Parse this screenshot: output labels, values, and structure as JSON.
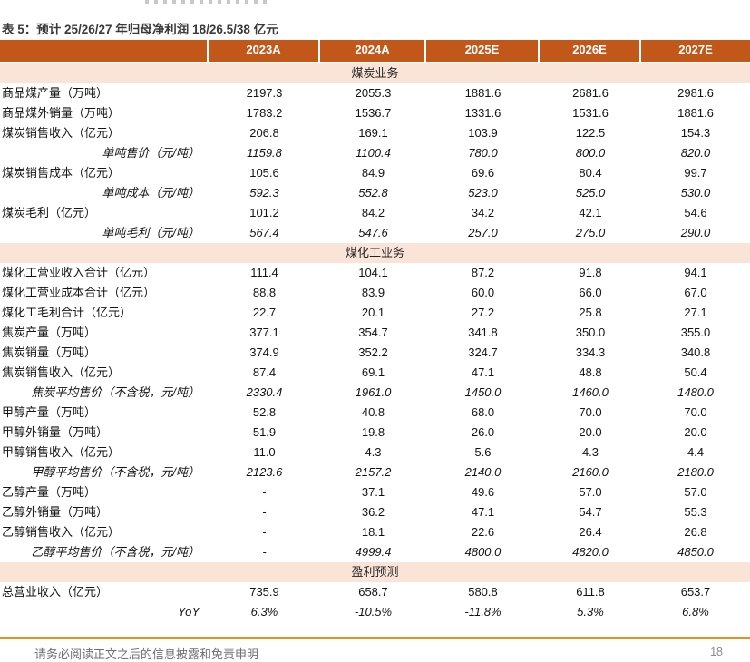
{
  "title": "表 5：预计 25/26/27 年归母净利润 18/26.5/38 亿元",
  "colors": {
    "header_bg": "#c2571a",
    "section_bg": "#fae3d7",
    "footer_rule": "#e89020"
  },
  "chart_data": {
    "type": "table",
    "title": "表 5：预计 25/26/27 年归母净利润 18/26.5/38 亿元",
    "columns": [
      "2023A",
      "2024A",
      "2025E",
      "2026E",
      "2027E"
    ],
    "rows": [
      {
        "type": "section",
        "label": "煤炭业务"
      },
      {
        "type": "data",
        "label": "商品煤产量（万吨）",
        "values": [
          "2197.3",
          "2055.3",
          "1881.6",
          "2681.6",
          "2981.6"
        ]
      },
      {
        "type": "data",
        "label": "商品煤外销量（万吨）",
        "values": [
          "1783.2",
          "1536.7",
          "1331.6",
          "1531.6",
          "1881.6"
        ]
      },
      {
        "type": "data",
        "label": "煤炭销售收入（亿元）",
        "values": [
          "206.8",
          "169.1",
          "103.9",
          "122.5",
          "154.3"
        ]
      },
      {
        "type": "sub",
        "label": "单吨售价（元/吨）",
        "values": [
          "1159.8",
          "1100.4",
          "780.0",
          "800.0",
          "820.0"
        ]
      },
      {
        "type": "data",
        "label": "煤炭销售成本（亿元）",
        "values": [
          "105.6",
          "84.9",
          "69.6",
          "80.4",
          "99.7"
        ]
      },
      {
        "type": "sub",
        "label": "单吨成本（元/吨）",
        "values": [
          "592.3",
          "552.8",
          "523.0",
          "525.0",
          "530.0"
        ]
      },
      {
        "type": "data",
        "label": "煤炭毛利（亿元）",
        "values": [
          "101.2",
          "84.2",
          "34.2",
          "42.1",
          "54.6"
        ]
      },
      {
        "type": "sub",
        "label": "单吨毛利（元/吨）",
        "values": [
          "567.4",
          "547.6",
          "257.0",
          "275.0",
          "290.0"
        ]
      },
      {
        "type": "section",
        "label": "煤化工业务"
      },
      {
        "type": "data",
        "label": "煤化工营业收入合计（亿元）",
        "values": [
          "111.4",
          "104.1",
          "87.2",
          "91.8",
          "94.1"
        ]
      },
      {
        "type": "data",
        "label": "煤化工营业成本合计（亿元）",
        "values": [
          "88.8",
          "83.9",
          "60.0",
          "66.0",
          "67.0"
        ]
      },
      {
        "type": "data",
        "label": "煤化工毛利合计（亿元）",
        "values": [
          "22.7",
          "20.1",
          "27.2",
          "25.8",
          "27.1"
        ]
      },
      {
        "type": "data",
        "label": "焦炭产量（万吨）",
        "values": [
          "377.1",
          "354.7",
          "341.8",
          "350.0",
          "355.0"
        ]
      },
      {
        "type": "data",
        "label": "焦炭销量（万吨）",
        "values": [
          "374.9",
          "352.2",
          "324.7",
          "334.3",
          "340.8"
        ]
      },
      {
        "type": "data",
        "label": "焦炭销售收入（亿元）",
        "values": [
          "87.4",
          "69.1",
          "47.1",
          "48.8",
          "50.4"
        ]
      },
      {
        "type": "sub",
        "label": "焦炭平均售价（不含税，元/吨）",
        "values": [
          "2330.4",
          "1961.0",
          "1450.0",
          "1460.0",
          "1480.0"
        ]
      },
      {
        "type": "data",
        "label": "甲醇产量（万吨）",
        "values": [
          "52.8",
          "40.8",
          "68.0",
          "70.0",
          "70.0"
        ]
      },
      {
        "type": "data",
        "label": "甲醇外销量（万吨）",
        "values": [
          "51.9",
          "19.8",
          "26.0",
          "20.0",
          "20.0"
        ]
      },
      {
        "type": "data",
        "label": "甲醇销售收入（亿元）",
        "values": [
          "11.0",
          "4.3",
          "5.6",
          "4.3",
          "4.4"
        ]
      },
      {
        "type": "sub",
        "label": "甲醇平均售价（不含税，元/吨）",
        "values": [
          "2123.6",
          "2157.2",
          "2140.0",
          "2160.0",
          "2180.0"
        ]
      },
      {
        "type": "data",
        "label": "乙醇产量（万吨）",
        "values": [
          "-",
          "37.1",
          "49.6",
          "57.0",
          "57.0"
        ]
      },
      {
        "type": "data",
        "label": "乙醇外销量（万吨）",
        "values": [
          "-",
          "36.2",
          "47.1",
          "54.7",
          "55.3"
        ]
      },
      {
        "type": "data",
        "label": "乙醇销售收入（亿元）",
        "values": [
          "-",
          "18.1",
          "22.6",
          "26.4",
          "26.8"
        ]
      },
      {
        "type": "sub",
        "label": "乙醇平均售价（不含税，元/吨）",
        "values": [
          "-",
          "4999.4",
          "4800.0",
          "4820.0",
          "4850.0"
        ]
      },
      {
        "type": "section",
        "label": "盈利预测"
      },
      {
        "type": "data",
        "label": "总营业收入（亿元）",
        "values": [
          "735.9",
          "658.7",
          "580.8",
          "611.8",
          "653.7"
        ]
      },
      {
        "type": "sub",
        "label": "YoY",
        "values": [
          "6.3%",
          "-10.5%",
          "-11.8%",
          "5.3%",
          "6.8%"
        ]
      }
    ]
  },
  "footer": {
    "disclaimer": "请务必阅读正文之后的信息披露和免责申明",
    "page": "18"
  }
}
